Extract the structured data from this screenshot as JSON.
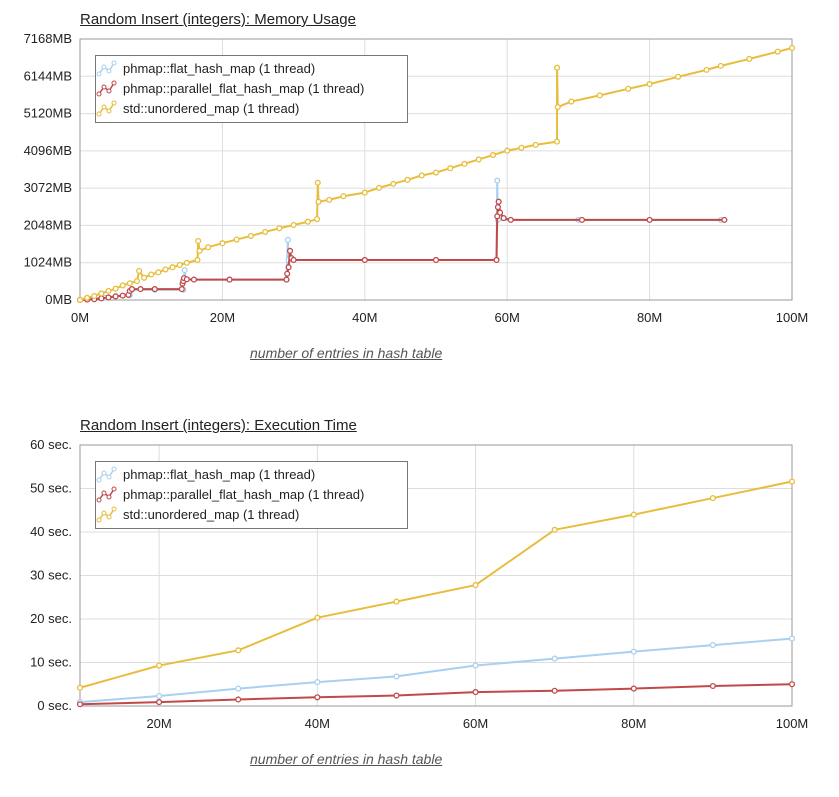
{
  "charts": [
    {
      "id": "memory",
      "title": "Random Insert (integers): Memory Usage",
      "xlabel": "number of entries in hash table",
      "yticks": [
        "0MB",
        "1024MB",
        "2048MB",
        "3072MB",
        "4096MB",
        "5120MB",
        "6144MB",
        "7168MB"
      ],
      "xticks": [
        "0M",
        "20M",
        "40M",
        "60M",
        "80M",
        "100M"
      ],
      "legend": [
        {
          "label": "phmap::flat_hash_map (1 thread)",
          "color": "#a9d0f0"
        },
        {
          "label": "phmap::parallel_flat_hash_map (1 thread)",
          "color": "#c0494a"
        },
        {
          "label": "std::unordered_map (1 thread)",
          "color": "#e8bd3c"
        }
      ]
    },
    {
      "id": "time",
      "title": "Random Insert (integers): Execution Time",
      "xlabel": "number of entries in hash table",
      "yticks": [
        "0 sec.",
        "10 sec.",
        "20 sec.",
        "30 sec.",
        "40 sec.",
        "50 sec.",
        "60 sec."
      ],
      "xticks": [
        "20M",
        "40M",
        "60M",
        "80M",
        "100M"
      ],
      "legend": [
        {
          "label": "phmap::flat_hash_map (1 thread)",
          "color": "#a9d0f0"
        },
        {
          "label": "phmap::parallel_flat_hash_map (1 thread)",
          "color": "#c0494a"
        },
        {
          "label": "std::unordered_map (1 thread)",
          "color": "#e8bd3c"
        }
      ]
    }
  ],
  "chart_data": [
    {
      "type": "line",
      "title": "Random Insert (integers): Memory Usage",
      "xlabel": "number of entries in hash table",
      "ylabel": "",
      "xlim": [
        0,
        100
      ],
      "ylim": [
        0,
        7168
      ],
      "x_unit": "M",
      "series": [
        {
          "name": "phmap::flat_hash_map (1 thread)",
          "color": "#a9d0f0",
          "points": [
            [
              0,
              0
            ],
            [
              1,
              16
            ],
            [
              2,
              40
            ],
            [
              3.5,
              64
            ],
            [
              5,
              96
            ],
            [
              7,
              130
            ],
            [
              7.3,
              280
            ],
            [
              10.5,
              280
            ],
            [
              14.5,
              280
            ],
            [
              14.7,
              820
            ],
            [
              14.8,
              560
            ],
            [
              21,
              560
            ],
            [
              29,
              560
            ],
            [
              29.2,
              1650
            ],
            [
              29.3,
              1100
            ],
            [
              40,
              1100
            ],
            [
              50,
              1100
            ],
            [
              58.5,
              1100
            ],
            [
              58.6,
              3280
            ],
            [
              58.7,
              2200
            ],
            [
              70,
              2200
            ],
            [
              80,
              2200
            ],
            [
              90,
              2200
            ]
          ]
        },
        {
          "name": "phmap::parallel_flat_hash_map (1 thread)",
          "color": "#c0494a",
          "points": [
            [
              0,
              0
            ],
            [
              1,
              10
            ],
            [
              2,
              20
            ],
            [
              3,
              45
            ],
            [
              4,
              70
            ],
            [
              5,
              100
            ],
            [
              6,
              120
            ],
            [
              6.8,
              140
            ],
            [
              7,
              250
            ],
            [
              7.3,
              300
            ],
            [
              8.5,
              300
            ],
            [
              10.5,
              300
            ],
            [
              14.3,
              300
            ],
            [
              14.4,
              450
            ],
            [
              14.5,
              520
            ],
            [
              14.6,
              600
            ],
            [
              15,
              570
            ],
            [
              16,
              560
            ],
            [
              21,
              560
            ],
            [
              29,
              560
            ],
            [
              29.1,
              720
            ],
            [
              29.3,
              900
            ],
            [
              29.5,
              1350
            ],
            [
              29.7,
              1150
            ],
            [
              30,
              1100
            ],
            [
              40,
              1100
            ],
            [
              50,
              1100
            ],
            [
              58.5,
              1100
            ],
            [
              58.6,
              2300
            ],
            [
              58.7,
              2550
            ],
            [
              58.8,
              2700
            ],
            [
              59,
              2400
            ],
            [
              59.5,
              2250
            ],
            [
              60.5,
              2200
            ],
            [
              70.5,
              2200
            ],
            [
              80,
              2200
            ],
            [
              90.5,
              2200
            ]
          ]
        },
        {
          "name": "std::unordered_map (1 thread)",
          "color": "#e8bd3c",
          "points": [
            [
              0,
              0
            ],
            [
              1,
              60
            ],
            [
              2,
              110
            ],
            [
              3,
              180
            ],
            [
              4,
              250
            ],
            [
              5,
              310
            ],
            [
              6,
              400
            ],
            [
              7,
              460
            ],
            [
              8,
              520
            ],
            [
              8.3,
              800
            ],
            [
              9,
              610
            ],
            [
              10,
              700
            ],
            [
              11,
              760
            ],
            [
              12,
              840
            ],
            [
              13,
              900
            ],
            [
              14,
              960
            ],
            [
              15,
              1020
            ],
            [
              16.5,
              1100
            ],
            [
              16.6,
              1620
            ],
            [
              16.8,
              1350
            ],
            [
              18,
              1450
            ],
            [
              20,
              1560
            ],
            [
              22,
              1660
            ],
            [
              24,
              1760
            ],
            [
              26,
              1870
            ],
            [
              28,
              1970
            ],
            [
              30,
              2060
            ],
            [
              32,
              2150
            ],
            [
              33.3,
              2220
            ],
            [
              33.4,
              3220
            ],
            [
              33.5,
              2700
            ],
            [
              35,
              2750
            ],
            [
              37,
              2850
            ],
            [
              40,
              2950
            ],
            [
              42,
              3080
            ],
            [
              44,
              3190
            ],
            [
              46,
              3300
            ],
            [
              48,
              3420
            ],
            [
              50,
              3500
            ],
            [
              52,
              3620
            ],
            [
              54,
              3740
            ],
            [
              56,
              3860
            ],
            [
              58,
              3980
            ],
            [
              60,
              4100
            ],
            [
              62,
              4180
            ],
            [
              64,
              4260
            ],
            [
              67,
              4350
            ],
            [
              67,
              6380
            ],
            [
              67.1,
              5300
            ],
            [
              69,
              5450
            ],
            [
              73,
              5620
            ],
            [
              77,
              5800
            ],
            [
              80,
              5930
            ],
            [
              84,
              6130
            ],
            [
              88,
              6320
            ],
            [
              90,
              6430
            ],
            [
              94,
              6620
            ],
            [
              98,
              6820
            ],
            [
              100,
              6920
            ]
          ]
        }
      ]
    },
    {
      "type": "line",
      "title": "Random Insert (integers): Execution Time",
      "xlabel": "number of entries in hash table",
      "ylabel": "",
      "xlim": [
        10,
        100
      ],
      "ylim": [
        0,
        60
      ],
      "x_unit": "M",
      "series": [
        {
          "name": "phmap::flat_hash_map (1 thread)",
          "color": "#a9d0f0",
          "points": [
            [
              10,
              0.9
            ],
            [
              20,
              2.3
            ],
            [
              30,
              4.0
            ],
            [
              40,
              5.5
            ],
            [
              50,
              6.8
            ],
            [
              60,
              9.3
            ],
            [
              70,
              10.9
            ],
            [
              80,
              12.5
            ],
            [
              90,
              14.0
            ],
            [
              100,
              15.5
            ]
          ]
        },
        {
          "name": "phmap::parallel_flat_hash_map (1 thread)",
          "color": "#c0494a",
          "points": [
            [
              10,
              0.4
            ],
            [
              20,
              0.9
            ],
            [
              30,
              1.5
            ],
            [
              40,
              2.0
            ],
            [
              50,
              2.4
            ],
            [
              60,
              3.2
            ],
            [
              70,
              3.5
            ],
            [
              80,
              4.0
            ],
            [
              90,
              4.6
            ],
            [
              100,
              5.0
            ]
          ]
        },
        {
          "name": "std::unordered_map (1 thread)",
          "color": "#e8bd3c",
          "points": [
            [
              10,
              4.2
            ],
            [
              20,
              9.3
            ],
            [
              30,
              12.8
            ],
            [
              40,
              20.3
            ],
            [
              50,
              24.0
            ],
            [
              60,
              27.8
            ],
            [
              70,
              40.5
            ],
            [
              80,
              44.0
            ],
            [
              90,
              47.8
            ],
            [
              100,
              51.6
            ]
          ]
        }
      ]
    }
  ]
}
